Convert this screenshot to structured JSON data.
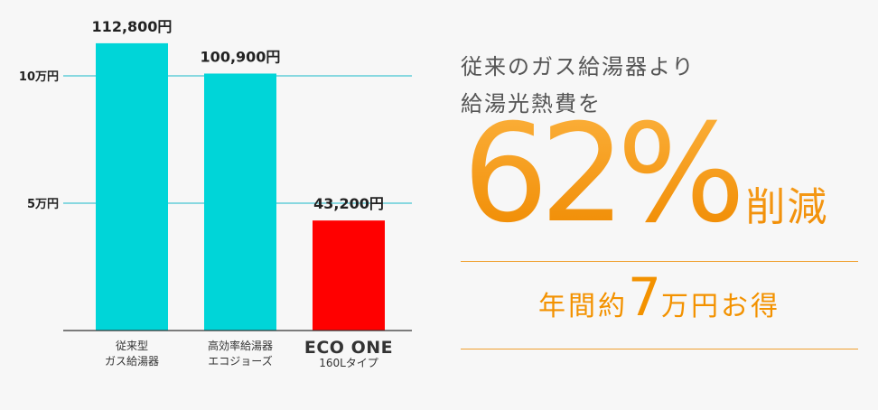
{
  "chart_data": {
    "type": "bar",
    "categories": [
      {
        "line1": "従来型",
        "line2": "ガス給湯器"
      },
      {
        "line1": "高効率給湯器",
        "line2": "エコジョーズ"
      },
      {
        "line1": "ECO ONE",
        "line2": "160Lタイプ"
      }
    ],
    "values": [
      112800,
      100900,
      43200
    ],
    "value_labels": [
      "112,800円",
      "100,900円",
      "43,200円"
    ],
    "bar_colors": [
      "#00d5d8",
      "#00d5d8",
      "#ff0000"
    ],
    "yticks": [
      {
        "value": 50000,
        "label": "5万円"
      },
      {
        "value": 100000,
        "label": "10万円"
      }
    ],
    "ylim": [
      0,
      120000
    ],
    "grid": true,
    "gridline_color": "#19b9c8"
  },
  "promo": {
    "line1": "従来のガス給湯器より",
    "line2": "給湯光熱費を",
    "headline_number": "62%",
    "headline_suffix": "削減",
    "saving_prefix": "年間約",
    "saving_number": "7",
    "saving_suffix": "万円お得",
    "accent_color": "#f39200"
  }
}
